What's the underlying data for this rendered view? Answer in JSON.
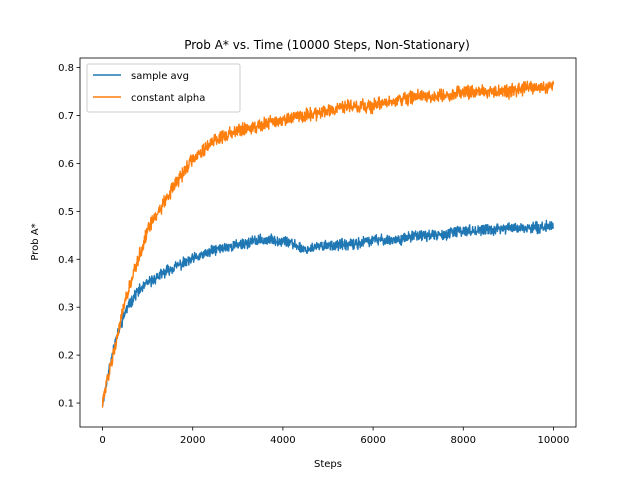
{
  "chart_data": {
    "type": "line",
    "title": "Prob A* vs. Time (10000 Steps, Non-Stationary)",
    "xlabel": "Steps",
    "ylabel": "Prob A*",
    "xlim": [
      -500,
      10500
    ],
    "ylim": [
      0.05,
      0.82
    ],
    "xticks": [
      0,
      2000,
      4000,
      6000,
      8000,
      10000
    ],
    "xtick_labels": [
      "0",
      "2000",
      "4000",
      "6000",
      "8000",
      "10000"
    ],
    "yticks": [
      0.1,
      0.2,
      0.3,
      0.4,
      0.5,
      0.6,
      0.7,
      0.8
    ],
    "ytick_labels": [
      "0.1",
      "0.2",
      "0.3",
      "0.4",
      "0.5",
      "0.6",
      "0.7",
      "0.8"
    ],
    "grid": false,
    "legend_position": "top-left",
    "x": [
      0,
      250,
      500,
      750,
      1000,
      1500,
      2000,
      2500,
      3000,
      3500,
      4000,
      4500,
      5000,
      5500,
      6000,
      6500,
      7000,
      7500,
      8000,
      8500,
      9000,
      9500,
      10000
    ],
    "series": [
      {
        "name": "sample avg",
        "color": "#1f77b4",
        "values": [
          0.1,
          0.22,
          0.29,
          0.33,
          0.35,
          0.38,
          0.4,
          0.42,
          0.43,
          0.44,
          0.44,
          0.42,
          0.43,
          0.43,
          0.44,
          0.44,
          0.45,
          0.45,
          0.46,
          0.46,
          0.465,
          0.465,
          0.47
        ]
      },
      {
        "name": "constant alpha",
        "color": "#ff7f0e",
        "values": [
          0.1,
          0.21,
          0.31,
          0.39,
          0.46,
          0.54,
          0.61,
          0.65,
          0.67,
          0.68,
          0.69,
          0.7,
          0.71,
          0.72,
          0.72,
          0.73,
          0.74,
          0.74,
          0.75,
          0.75,
          0.75,
          0.76,
          0.76
        ]
      }
    ]
  }
}
